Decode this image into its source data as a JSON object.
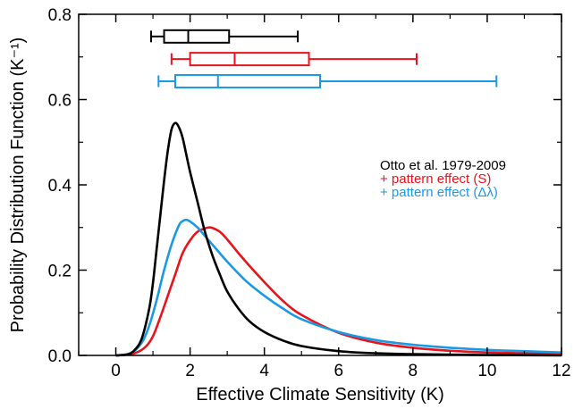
{
  "chart_data": {
    "type": "line",
    "xlabel": "Effective Climate Sensitivity (K)",
    "ylabel": "Probability Distribution Function (K⁻¹)",
    "xlim": [
      -1,
      12
    ],
    "ylim": [
      0,
      0.8
    ],
    "xticks": [
      0,
      2,
      4,
      6,
      8,
      10,
      12
    ],
    "yticks": [
      0.0,
      0.2,
      0.4,
      0.6,
      0.8
    ],
    "ytick_labels": [
      "0.0",
      "0.2",
      "0.4",
      "0.6",
      "0.8"
    ],
    "legend_position": "right-center",
    "series": [
      {
        "name": "Otto et al. 1979-2009",
        "color": "#000000",
        "x": [
          0.0,
          0.3,
          0.5,
          0.7,
          0.9,
          1.0,
          1.1,
          1.2,
          1.3,
          1.4,
          1.5,
          1.6,
          1.7,
          1.8,
          1.9,
          2.0,
          2.2,
          2.4,
          2.6,
          2.8,
          3.0,
          3.3,
          3.6,
          4.0,
          4.5,
          5.0,
          6.0,
          7.0,
          8.0,
          10.0,
          12.0
        ],
        "y": [
          0.0,
          0.002,
          0.012,
          0.04,
          0.11,
          0.17,
          0.25,
          0.33,
          0.41,
          0.48,
          0.53,
          0.545,
          0.535,
          0.51,
          0.47,
          0.43,
          0.36,
          0.29,
          0.235,
          0.19,
          0.15,
          0.11,
          0.08,
          0.055,
          0.035,
          0.022,
          0.01,
          0.005,
          0.003,
          0.001,
          0.0
        ]
      },
      {
        "name": "+ pattern effect (S)",
        "color": "#e8141b",
        "x": [
          0.0,
          0.5,
          0.8,
          1.0,
          1.2,
          1.4,
          1.6,
          1.8,
          2.0,
          2.2,
          2.4,
          2.5,
          2.6,
          2.8,
          3.0,
          3.3,
          3.6,
          4.0,
          4.5,
          5.0,
          6.0,
          7.0,
          8.0,
          9.0,
          10.0,
          11.0,
          12.0
        ],
        "y": [
          0.0,
          0.005,
          0.02,
          0.045,
          0.09,
          0.14,
          0.19,
          0.24,
          0.27,
          0.29,
          0.298,
          0.3,
          0.299,
          0.29,
          0.272,
          0.24,
          0.21,
          0.172,
          0.128,
          0.095,
          0.053,
          0.03,
          0.018,
          0.011,
          0.007,
          0.005,
          0.003
        ]
      },
      {
        "name": "+ pattern effect (Δλ)",
        "color": "#1a9ae4",
        "x": [
          0.0,
          0.4,
          0.7,
          0.9,
          1.1,
          1.3,
          1.5,
          1.7,
          1.8,
          1.9,
          2.0,
          2.2,
          2.4,
          2.7,
          3.0,
          3.5,
          4.0,
          4.5,
          5.0,
          6.0,
          7.0,
          8.0,
          9.0,
          10.0,
          11.0,
          12.0
        ],
        "y": [
          0.0,
          0.005,
          0.03,
          0.07,
          0.13,
          0.2,
          0.26,
          0.305,
          0.315,
          0.318,
          0.314,
          0.3,
          0.28,
          0.25,
          0.22,
          0.175,
          0.14,
          0.11,
          0.085,
          0.055,
          0.036,
          0.025,
          0.018,
          0.013,
          0.01,
          0.007
        ]
      }
    ],
    "boxplots": [
      {
        "series": "Otto et al. 1979-2009",
        "y": 0.748,
        "whisker_low": 0.95,
        "q1": 1.3,
        "median": 1.95,
        "q3": 3.05,
        "whisker_high": 4.9
      },
      {
        "series": "+ pattern effect (S)",
        "y": 0.695,
        "whisker_low": 1.5,
        "q1": 2.0,
        "median": 3.2,
        "q3": 5.2,
        "whisker_high": 8.1
      },
      {
        "series": "+ pattern effect (Δλ)",
        "y": 0.643,
        "whisker_low": 1.15,
        "q1": 1.6,
        "median": 2.75,
        "q3": 5.5,
        "whisker_high": 10.25
      }
    ]
  }
}
